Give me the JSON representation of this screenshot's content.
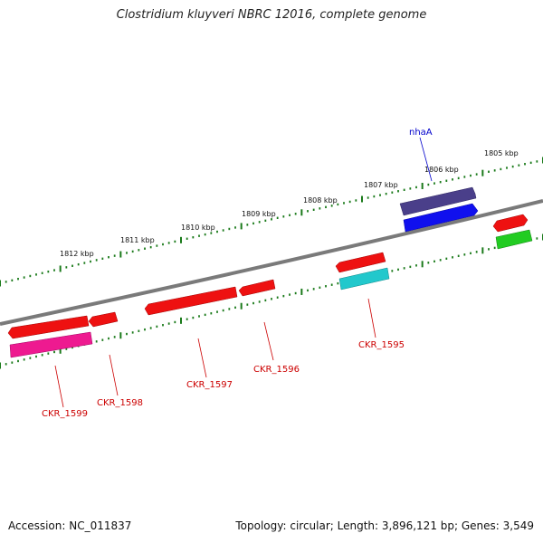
{
  "title": "Clostridium kluyveri NBRC 12016, complete genome",
  "accession": "Accession: NC_011837",
  "summary": "Topology: circular; Length: 3,896,121 bp; Genes: 3,549",
  "colors": {
    "backbone": "#808080",
    "ticks": "#1a7a1a",
    "gene_label": "#cc0000",
    "special_label": "#0000cc"
  },
  "kbp_labels": [
    "1812 kbp",
    "1811 kbp",
    "1810 kbp",
    "1809 kbp",
    "1808 kbp",
    "1807 kbp",
    "1806 kbp",
    "1805 kbp"
  ],
  "gene_labels": [
    "CKR_1599",
    "CKR_1598",
    "CKR_1597",
    "CKR_1596",
    "CKR_1595",
    "nhaA"
  ]
}
